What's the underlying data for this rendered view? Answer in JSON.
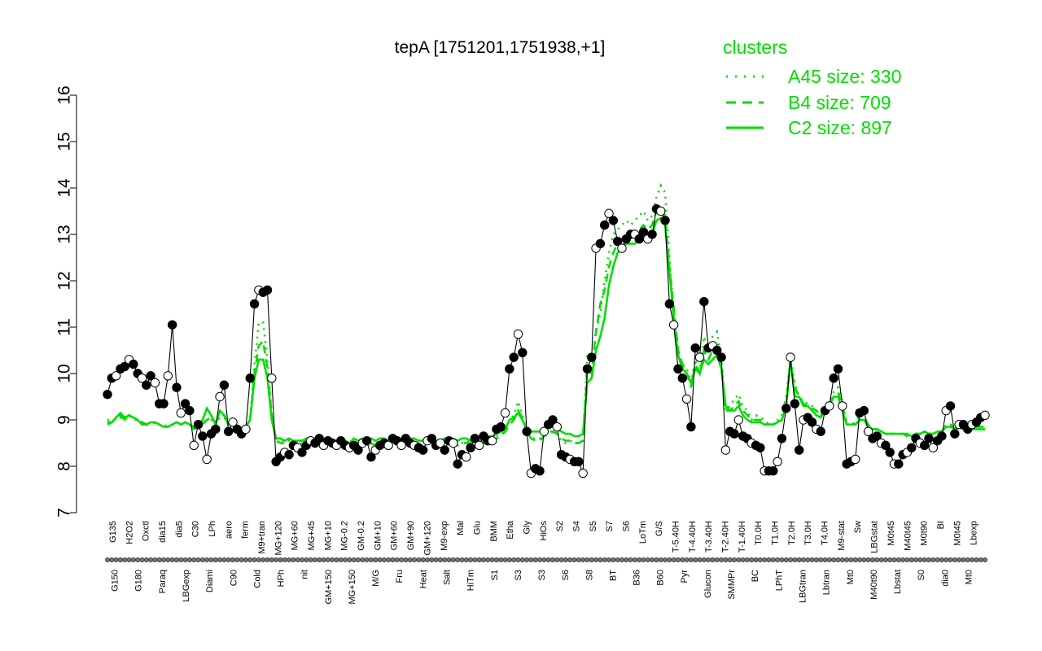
{
  "chart_data": {
    "type": "line",
    "title": "tepA [1751201,1751938,+1]",
    "xlabel": "",
    "ylabel": "",
    "ylim": [
      7,
      16
    ],
    "yticks": [
      7,
      8,
      9,
      10,
      11,
      12,
      13,
      14,
      15,
      16
    ],
    "grid": false,
    "legend_position": "top-right",
    "legend": {
      "title": "clusters",
      "entries": [
        {
          "label": "A45 size: 330",
          "style": "dotted"
        },
        {
          "label": "B4 size: 709",
          "style": "dashed"
        },
        {
          "label": "C2 size: 897",
          "style": "solid"
        }
      ]
    },
    "x_tick_labels_top": [
      "G135",
      "H2O2",
      "Oxctl",
      "dia15",
      "dia5",
      "C30",
      "LPh",
      "aero",
      "ferm",
      "M9+tran",
      "MG+120",
      "MG+60",
      "MG+45",
      "MG+10",
      "MG-0.2",
      "GM-0.2",
      "GM+10",
      "GM+60",
      "GM+90",
      "GM+120",
      "M9-exp",
      "Mal",
      "Glu",
      "BMM",
      "Etha",
      "Gly",
      "HiOs",
      "S2",
      "S4",
      "S5",
      "S7",
      "S6",
      "LoTm",
      "G/S",
      "T-5.40H",
      "T-4.40H",
      "T-3.40H",
      "T-2.40H",
      "T-1.40H",
      "T0.0H",
      "T1.0H",
      "T2.0H",
      "T3.0H",
      "T4.0H",
      "M9-stat",
      "Sw",
      "LBGstat",
      "M0t45",
      "M40t45",
      "M0t90",
      "BI",
      "M0t45",
      "Lbexp"
    ],
    "x_tick_labels_bottom": [
      "G150",
      "G180",
      "Paraq",
      "LBGexp",
      "Diami",
      "C90",
      "Cold",
      "HPh",
      "nit",
      "GM+150",
      "MG+150",
      "M/G",
      "Fru",
      "Heat",
      "Salt",
      "HiTm",
      "S1",
      "S3",
      "S3",
      "S6",
      "S8",
      "BT",
      "B36",
      "B60",
      "Pyr",
      "Glucon",
      "SMMPr",
      "BC",
      "LPhT",
      "LBGtran",
      "Lbtran",
      "Mt0",
      "M40t90",
      "Lbstat",
      "S0",
      "dia0",
      "Mt0"
    ],
    "series": [
      {
        "name": "",
        "style": "solid",
        "color": "#000000",
        "values": [
          9.55,
          9.9,
          9.95,
          10.1,
          10.15,
          10.3,
          10.2,
          10.0,
          9.9,
          9.75,
          9.95,
          9.8,
          9.35,
          9.35,
          9.95,
          11.05,
          9.7,
          9.15,
          9.35,
          9.2,
          8.45,
          8.9,
          8.65,
          8.15,
          8.7,
          8.8,
          9.5,
          9.75,
          8.75,
          8.95,
          8.8,
          8.7,
          8.8,
          9.9,
          11.5,
          11.8,
          11.75,
          11.8,
          9.9,
          8.1,
          8.2,
          8.3,
          8.25,
          8.45,
          8.4,
          8.3,
          8.45,
          8.55,
          8.5,
          8.6,
          8.45,
          8.55,
          8.5,
          8.45,
          8.55,
          8.45,
          8.4,
          8.45,
          8.35,
          8.5,
          8.55,
          8.2,
          8.35,
          8.45,
          8.5,
          8.45,
          8.6,
          8.55,
          8.45,
          8.6,
          8.5,
          8.45,
          8.4,
          8.35,
          8.55,
          8.6,
          8.45,
          8.5,
          8.35,
          8.55,
          8.5,
          8.05,
          8.25,
          8.2,
          8.4,
          8.6,
          8.45,
          8.65,
          8.55,
          8.55,
          8.8,
          8.85,
          9.15,
          10.1,
          10.35,
          10.85,
          10.45,
          8.75,
          7.85,
          7.95,
          7.9,
          8.75,
          8.9,
          9.0,
          8.85,
          8.25,
          8.2,
          8.15,
          8.1,
          8.1,
          7.85,
          10.1,
          10.35,
          12.7,
          12.8,
          13.2,
          13.45,
          13.3,
          12.85,
          12.7,
          12.9,
          13.0,
          13.0,
          12.9,
          13.05,
          12.9,
          13.0,
          13.55,
          13.5,
          13.3,
          11.5,
          11.05,
          10.1,
          9.9,
          9.45,
          8.85,
          10.55,
          10.35,
          11.55,
          10.55,
          10.6,
          10.5,
          10.35,
          8.35,
          8.75,
          8.7,
          9.0,
          8.65,
          8.6,
          8.5,
          8.45,
          8.4,
          7.9,
          7.9,
          7.9,
          8.1,
          8.6,
          9.25,
          10.35,
          9.35,
          8.35,
          9.0,
          9.05,
          8.95,
          8.8,
          8.75,
          9.2,
          9.3,
          9.9,
          10.1,
          9.3,
          8.05,
          8.1,
          8.15,
          9.15,
          9.2,
          8.75,
          8.6,
          8.65,
          8.5,
          8.45,
          8.3,
          8.05,
          8.05,
          8.25,
          8.3,
          8.4,
          8.6,
          8.5,
          8.45,
          8.6,
          8.4,
          8.55,
          8.65,
          9.2,
          9.3,
          8.7,
          8.9,
          8.9,
          8.8,
          8.9,
          8.95,
          9.05,
          9.1
        ]
      },
      {
        "name": "A45 size: 330",
        "style": "dotted",
        "color": "#00dd00",
        "values": [
          9.0,
          9.0,
          9.0,
          9.05,
          9.0,
          9.1,
          9.0,
          9.0,
          8.95,
          8.9,
          8.9,
          8.95,
          8.9,
          8.9,
          8.85,
          8.9,
          8.95,
          8.9,
          8.95,
          8.9,
          8.85,
          8.85,
          8.95,
          9.0,
          9.0,
          8.9,
          9.05,
          9.05,
          8.9,
          8.9,
          8.85,
          8.8,
          8.85,
          9.0,
          10.2,
          11.1,
          11.1,
          10.3,
          9.1,
          8.6,
          8.55,
          8.55,
          8.55,
          8.55,
          8.5,
          8.5,
          8.55,
          8.55,
          8.5,
          8.55,
          8.5,
          8.55,
          8.5,
          8.5,
          8.5,
          8.5,
          8.5,
          8.5,
          8.5,
          8.55,
          8.5,
          8.5,
          8.45,
          8.5,
          8.5,
          8.5,
          8.55,
          8.5,
          8.5,
          8.5,
          8.5,
          8.5,
          8.5,
          8.5,
          8.5,
          8.5,
          8.5,
          8.5,
          8.55,
          8.55,
          8.55,
          8.5,
          8.5,
          8.55,
          8.5,
          8.55,
          8.5,
          8.5,
          8.55,
          8.6,
          8.65,
          8.7,
          8.75,
          9.0,
          9.1,
          9.4,
          9.1,
          8.75,
          8.6,
          8.6,
          8.6,
          8.7,
          8.75,
          8.75,
          8.7,
          8.55,
          8.5,
          8.55,
          8.5,
          8.5,
          8.55,
          10.4,
          10.0,
          10.9,
          11.3,
          12.0,
          12.6,
          13.0,
          13.1,
          13.2,
          13.3,
          13.2,
          13.3,
          13.4,
          13.5,
          13.3,
          13.4,
          13.8,
          14.05,
          13.9,
          12.5,
          11.3,
          10.5,
          10.2,
          10.1,
          9.8,
          10.3,
          10.0,
          10.8,
          10.5,
          10.8,
          10.9,
          10.3,
          9.2,
          9.3,
          9.45,
          9.55,
          9.3,
          9.2,
          9.0,
          9.1,
          9.05,
          9.0,
          8.9,
          8.9,
          9.0,
          9.1,
          9.5,
          10.3,
          9.8,
          9.5,
          9.4,
          9.35,
          9.3,
          9.2,
          9.1,
          9.3,
          9.4,
          9.6,
          9.7,
          9.4,
          8.9,
          8.9,
          8.95,
          9.1,
          9.1,
          8.9,
          8.8,
          8.8,
          8.75,
          8.7,
          8.7,
          8.7,
          8.7,
          8.7,
          8.65,
          8.65,
          8.7,
          8.7,
          8.75,
          8.7,
          8.7,
          8.75,
          8.75,
          8.9,
          8.9,
          8.8,
          8.85,
          8.85,
          8.85,
          8.85,
          8.85,
          8.85,
          8.85
        ]
      },
      {
        "name": "B4 size: 709",
        "style": "dashed",
        "color": "#00dd00",
        "values": [
          8.95,
          8.95,
          9.05,
          9.1,
          9.0,
          9.1,
          9.05,
          9.0,
          8.95,
          8.9,
          8.9,
          8.95,
          8.9,
          8.85,
          8.85,
          8.9,
          8.95,
          8.9,
          8.95,
          8.9,
          8.85,
          8.85,
          8.9,
          9.0,
          9.05,
          8.95,
          9.1,
          9.1,
          8.9,
          8.9,
          8.85,
          8.8,
          8.85,
          9.0,
          10.0,
          10.6,
          10.7,
          10.1,
          9.1,
          8.55,
          8.5,
          8.5,
          8.5,
          8.5,
          8.5,
          8.5,
          8.55,
          8.55,
          8.5,
          8.55,
          8.5,
          8.5,
          8.5,
          8.5,
          8.5,
          8.5,
          8.5,
          8.5,
          8.5,
          8.5,
          8.5,
          8.5,
          8.45,
          8.5,
          8.5,
          8.5,
          8.5,
          8.5,
          8.5,
          8.5,
          8.5,
          8.5,
          8.5,
          8.5,
          8.5,
          8.5,
          8.5,
          8.5,
          8.5,
          8.55,
          8.5,
          8.45,
          8.5,
          8.5,
          8.5,
          8.5,
          8.5,
          8.5,
          8.55,
          8.55,
          8.6,
          8.65,
          8.75,
          8.9,
          9.0,
          9.2,
          9.05,
          8.75,
          8.6,
          8.55,
          8.55,
          8.65,
          8.7,
          8.75,
          8.7,
          8.6,
          8.55,
          8.55,
          8.5,
          8.5,
          8.55,
          10.1,
          10.0,
          10.9,
          11.5,
          11.8,
          12.3,
          12.6,
          12.8,
          12.9,
          13.0,
          13.0,
          13.0,
          13.1,
          13.2,
          13.1,
          13.2,
          13.5,
          13.6,
          13.4,
          12.3,
          11.4,
          10.5,
          10.2,
          10.0,
          9.7,
          10.2,
          10.0,
          10.5,
          10.3,
          10.5,
          10.6,
          10.2,
          9.2,
          9.2,
          9.3,
          9.4,
          9.2,
          9.1,
          9.0,
          9.0,
          9.0,
          8.95,
          8.9,
          8.9,
          8.95,
          9.0,
          9.3,
          10.2,
          9.7,
          9.5,
          9.35,
          9.3,
          9.25,
          9.2,
          9.1,
          9.25,
          9.35,
          9.5,
          9.6,
          9.3,
          8.9,
          8.9,
          8.9,
          9.0,
          9.05,
          8.9,
          8.8,
          8.8,
          8.75,
          8.7,
          8.7,
          8.7,
          8.7,
          8.7,
          8.65,
          8.65,
          8.7,
          8.7,
          8.75,
          8.7,
          8.7,
          8.75,
          8.75,
          8.85,
          8.9,
          8.8,
          8.85,
          8.85,
          8.85,
          8.85,
          8.85,
          8.85,
          8.85
        ]
      },
      {
        "name": "C2 size: 897",
        "style": "solid",
        "color": "#00dd00",
        "values": [
          8.9,
          8.95,
          9.05,
          9.15,
          9.05,
          9.1,
          9.05,
          9.0,
          8.9,
          8.9,
          8.95,
          8.95,
          8.9,
          8.85,
          8.85,
          8.9,
          8.95,
          8.9,
          8.95,
          8.9,
          8.8,
          8.85,
          9.0,
          9.25,
          9.1,
          8.9,
          9.2,
          9.1,
          8.9,
          8.9,
          8.85,
          8.8,
          8.85,
          9.0,
          9.9,
          10.3,
          10.3,
          9.9,
          9.0,
          8.6,
          8.6,
          8.55,
          8.6,
          8.55,
          8.55,
          8.55,
          8.6,
          8.6,
          8.55,
          8.6,
          8.55,
          8.6,
          8.55,
          8.55,
          8.6,
          8.55,
          8.5,
          8.6,
          8.55,
          8.6,
          8.55,
          8.6,
          8.55,
          8.6,
          8.6,
          8.55,
          8.6,
          8.6,
          8.55,
          8.6,
          8.6,
          8.6,
          8.55,
          8.55,
          8.55,
          8.55,
          8.55,
          8.55,
          8.6,
          8.6,
          8.6,
          8.55,
          8.6,
          8.6,
          8.55,
          8.6,
          8.55,
          8.55,
          8.65,
          8.65,
          8.7,
          8.75,
          8.8,
          9.0,
          9.05,
          9.15,
          9.0,
          8.8,
          8.75,
          8.75,
          8.75,
          8.8,
          8.85,
          8.85,
          8.8,
          8.75,
          8.7,
          8.7,
          8.65,
          8.65,
          8.7,
          9.8,
          9.9,
          10.5,
          10.8,
          11.2,
          11.9,
          12.3,
          12.6,
          12.7,
          12.8,
          12.8,
          12.8,
          12.9,
          13.0,
          12.9,
          13.0,
          13.3,
          13.35,
          13.2,
          12.2,
          11.2,
          10.4,
          10.1,
          10.0,
          9.8,
          10.1,
          10.0,
          10.3,
          10.2,
          10.3,
          10.4,
          10.1,
          9.3,
          9.2,
          9.2,
          9.3,
          9.1,
          9.0,
          8.95,
          8.95,
          8.95,
          8.9,
          8.9,
          8.9,
          8.95,
          9.0,
          9.3,
          10.3,
          9.5,
          9.5,
          9.3,
          9.3,
          9.2,
          9.1,
          9.05,
          9.2,
          9.3,
          9.5,
          9.5,
          9.2,
          8.9,
          8.9,
          8.9,
          9.0,
          9.0,
          8.85,
          8.8,
          8.8,
          8.75,
          8.7,
          8.7,
          8.7,
          8.7,
          8.7,
          8.7,
          8.65,
          8.7,
          8.7,
          8.75,
          8.7,
          8.7,
          8.75,
          8.75,
          8.85,
          8.85,
          8.8,
          8.85,
          8.8,
          8.8,
          8.8,
          8.8,
          8.8,
          8.8
        ]
      }
    ]
  }
}
